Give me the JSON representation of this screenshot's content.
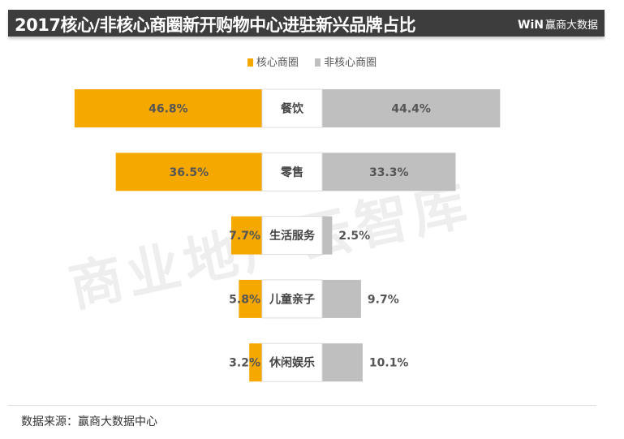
{
  "header": {
    "title": "2017核心/非核心商圈新开购物中心进驻新兴品牌占比",
    "logo_mark": "WiN",
    "logo_text": "赢商大数据"
  },
  "watermark": "商业地产云智库",
  "footer": {
    "source": "数据来源：赢商大数据中心"
  },
  "chart_data": {
    "type": "bar",
    "orientation": "horizontal-diverging",
    "categories": [
      "餐饮",
      "零售",
      "生活服务",
      "儿童亲子",
      "休闲娱乐"
    ],
    "series": [
      {
        "name": "核心商圈",
        "values": [
          46.8,
          36.5,
          7.7,
          5.8,
          3.2
        ],
        "labels": [
          "46.8%",
          "36.5%",
          "7.7%",
          "5.8%",
          "3.2%"
        ],
        "color": "#f5a800",
        "side": "left"
      },
      {
        "name": "非核心商圈",
        "values": [
          44.4,
          33.3,
          2.5,
          9.7,
          10.1
        ],
        "labels": [
          "44.4%",
          "33.3%",
          "2.5%",
          "9.7%",
          "10.1%"
        ],
        "color": "#bfbfbf",
        "side": "right"
      }
    ],
    "unit": "%",
    "legend": "top-center",
    "grid": false
  }
}
